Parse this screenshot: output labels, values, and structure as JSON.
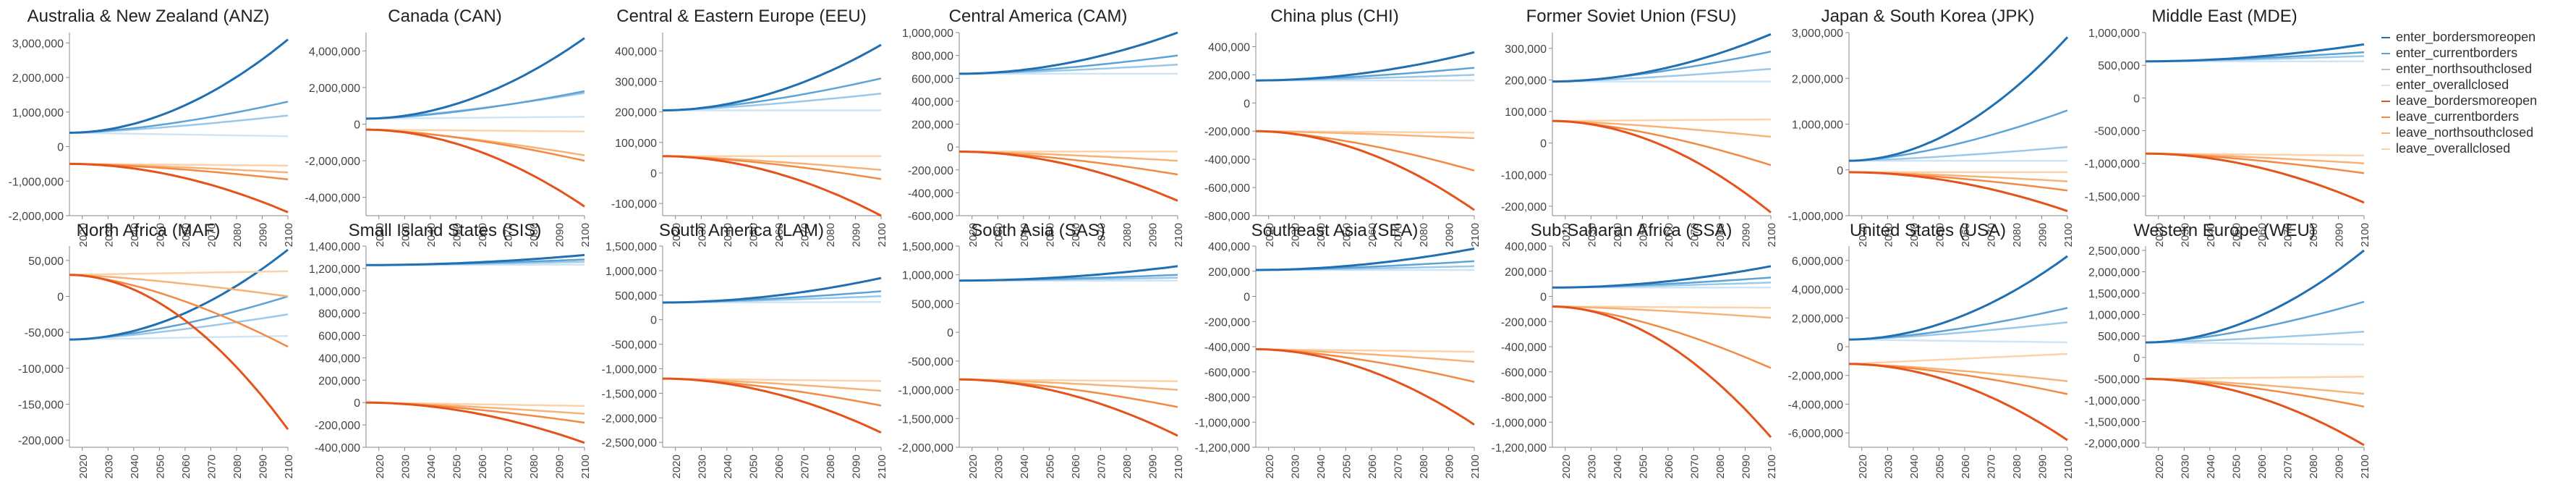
{
  "chart_data": {
    "type": "line",
    "layout": "small-multiples",
    "x_ticks": [
      "2020",
      "2030",
      "2040",
      "2050",
      "2060",
      "2070",
      "2080",
      "2090",
      "2100"
    ],
    "x_range": [
      2015,
      2100
    ],
    "series_names": [
      "enter_bordersmoreopen",
      "enter_currentborders",
      "enter_northsouthclosed",
      "enter_overallclosed",
      "leave_bordersmoreopen",
      "leave_currentborders",
      "leave_northsouthclosed",
      "leave_overallclosed"
    ],
    "colors": {
      "enter_bordersmoreopen": "#1f6fb2",
      "enter_currentborders": "#5ea3d6",
      "enter_northsouthclosed": "#9cc9ea",
      "enter_overallclosed": "#cfe4f4",
      "leave_bordersmoreopen": "#e5531a",
      "leave_currentborders": "#f28a44",
      "leave_northsouthclosed": "#f7b278",
      "leave_overallclosed": "#fbd3aa"
    },
    "grid": false,
    "legend_position": "right",
    "panels": [
      {
        "title": "Australia & New Zealand (ANZ)",
        "yticks": [
          "3,000,000",
          "2,000,000",
          "1,000,000",
          "0",
          "-1,000,000",
          "-2,000,000"
        ],
        "ylim": [
          -2000000,
          3300000
        ],
        "enter": {
          "start": 400000,
          "ends": [
            3100000,
            1300000,
            900000,
            300000
          ]
        },
        "leave": {
          "start": -500000,
          "ends": [
            -1900000,
            -950000,
            -750000,
            -550000
          ]
        }
      },
      {
        "title": "Canada (CAN)",
        "yticks": [
          "4,000,000",
          "2,000,000",
          "0",
          "-2,000,000",
          "-4,000,000"
        ],
        "ylim": [
          -5000000,
          5000000
        ],
        "enter": {
          "start": 300000,
          "ends": [
            4700000,
            1800000,
            1700000,
            400000
          ]
        },
        "leave": {
          "start": -300000,
          "ends": [
            -4500000,
            -2000000,
            -1700000,
            -400000
          ]
        }
      },
      {
        "title": "Central & Eastern Europe (EEU)",
        "yticks": [
          "400,000",
          "300,000",
          "200,000",
          "100,000",
          "0",
          "-100,000"
        ],
        "ylim": [
          -140000,
          460000
        ],
        "enter": {
          "start": 205000,
          "ends": [
            420000,
            310000,
            260000,
            205000
          ]
        },
        "leave": {
          "start": 55000,
          "ends": [
            -140000,
            -20000,
            10000,
            55000
          ]
        }
      },
      {
        "title": "Central America (CAM)",
        "yticks": [
          "1,000,000",
          "800,000",
          "600,000",
          "400,000",
          "200,000",
          "0",
          "-200,000",
          "-400,000",
          "-600,000"
        ],
        "ylim": [
          -600000,
          1000000
        ],
        "enter": {
          "start": 640000,
          "ends": [
            1000000,
            800000,
            720000,
            640000
          ]
        },
        "leave": {
          "start": -40000,
          "ends": [
            -470000,
            -240000,
            -120000,
            -40000
          ]
        }
      },
      {
        "title": "China plus (CHI)",
        "yticks": [
          "400,000",
          "200,000",
          "0",
          "-200,000",
          "-400,000",
          "-600,000",
          "-800,000"
        ],
        "ylim": [
          -800000,
          500000
        ],
        "enter": {
          "start": 160000,
          "ends": [
            360000,
            250000,
            200000,
            160000
          ]
        },
        "leave": {
          "start": -200000,
          "ends": [
            -760000,
            -480000,
            -250000,
            -210000
          ]
        }
      },
      {
        "title": "Former Soviet Union (FSU)",
        "yticks": [
          "300,000",
          "200,000",
          "100,000",
          "0",
          "-100,000",
          "-200,000"
        ],
        "ylim": [
          -230000,
          350000
        ],
        "enter": {
          "start": 195000,
          "ends": [
            345000,
            290000,
            235000,
            195000
          ]
        },
        "leave": {
          "start": 70000,
          "ends": [
            -220000,
            -70000,
            20000,
            75000
          ]
        }
      },
      {
        "title": "Japan & South Korea (JPK)",
        "yticks": [
          "3,000,000",
          "2,000,000",
          "1,000,000",
          "0",
          "-1,000,000"
        ],
        "ylim": [
          -1000000,
          3000000
        ],
        "enter": {
          "start": 200000,
          "ends": [
            2900000,
            1300000,
            500000,
            200000
          ]
        },
        "leave": {
          "start": -50000,
          "ends": [
            -900000,
            -450000,
            -250000,
            -50000
          ]
        }
      },
      {
        "title": "Middle East (MDE)",
        "yticks": [
          "1,000,000",
          "500,000",
          "0",
          "-500,000",
          "-1,000,000",
          "-1,500,000"
        ],
        "ylim": [
          -1800000,
          1000000
        ],
        "enter": {
          "start": 560000,
          "ends": [
            820000,
            700000,
            640000,
            560000
          ]
        },
        "leave": {
          "start": -850000,
          "ends": [
            -1600000,
            -1150000,
            -1000000,
            -880000
          ]
        }
      },
      {
        "title": "North Africa (MAF)",
        "yticks": [
          "50,000",
          "0",
          "-50,000",
          "-100,000",
          "-150,000",
          "-200,000"
        ],
        "ylim": [
          -210000,
          70000
        ],
        "enter": {
          "start": -60000,
          "ends": [
            65000,
            0,
            -25000,
            -55000
          ]
        },
        "leave": {
          "start": 30000,
          "ends": [
            -185000,
            -70000,
            0,
            35000
          ]
        }
      },
      {
        "title": "Small Island States (SIS)",
        "yticks": [
          "1,400,000",
          "1,200,000",
          "1,000,000",
          "800,000",
          "600,000",
          "400,000",
          "200,000",
          "0",
          "-200,000",
          "-400,000"
        ],
        "ylim": [
          -400000,
          1400000
        ],
        "enter": {
          "start": 1230000,
          "ends": [
            1320000,
            1280000,
            1260000,
            1235000
          ]
        },
        "leave": {
          "start": 0,
          "ends": [
            -360000,
            -180000,
            -100000,
            -30000
          ]
        }
      },
      {
        "title": "South America (LAM)",
        "yticks": [
          "1,500,000",
          "1,000,000",
          "500,000",
          "0",
          "-500,000",
          "-1,000,000",
          "-1,500,000",
          "-2,000,000",
          "-2,500,000"
        ],
        "ylim": [
          -2600000,
          1500000
        ],
        "enter": {
          "start": 350000,
          "ends": [
            850000,
            580000,
            480000,
            360000
          ]
        },
        "leave": {
          "start": -1200000,
          "ends": [
            -2300000,
            -1750000,
            -1450000,
            -1250000
          ]
        }
      },
      {
        "title": "South Asia (SAS)",
        "yticks": [
          "1,500,000",
          "1,000,000",
          "500,000",
          "0",
          "-500,000",
          "-1,000,000",
          "-1,500,000",
          "-2,000,000"
        ],
        "ylim": [
          -2000000,
          1500000
        ],
        "enter": {
          "start": 900000,
          "ends": [
            1150000,
            1000000,
            950000,
            900000
          ]
        },
        "leave": {
          "start": -820000,
          "ends": [
            -1800000,
            -1300000,
            -1000000,
            -850000
          ]
        }
      },
      {
        "title": "Southeast Asia (SEA)",
        "yticks": [
          "400,000",
          "200,000",
          "0",
          "-200,000",
          "-400,000",
          "-600,000",
          "-800,000",
          "-1,000,000",
          "-1,200,000"
        ],
        "ylim": [
          -1200000,
          400000
        ],
        "enter": {
          "start": 210000,
          "ends": [
            380000,
            280000,
            240000,
            210000
          ]
        },
        "leave": {
          "start": -420000,
          "ends": [
            -1020000,
            -680000,
            -520000,
            -440000
          ]
        }
      },
      {
        "title": "Sub-Saharan Africa (SSA)",
        "yticks": [
          "400,000",
          "200,000",
          "0",
          "-200,000",
          "-400,000",
          "-600,000",
          "-800,000",
          "-1,000,000",
          "-1,200,000"
        ],
        "ylim": [
          -1200000,
          400000
        ],
        "enter": {
          "start": 70000,
          "ends": [
            240000,
            150000,
            110000,
            70000
          ]
        },
        "leave": {
          "start": -80000,
          "ends": [
            -1120000,
            -570000,
            -170000,
            -90000
          ]
        }
      },
      {
        "title": "United States (USA)",
        "yticks": [
          "6,000,000",
          "4,000,000",
          "2,000,000",
          "0",
          "-2,000,000",
          "-4,000,000",
          "-6,000,000"
        ],
        "ylim": [
          -7000000,
          7000000
        ],
        "enter": {
          "start": 500000,
          "ends": [
            6300000,
            2700000,
            1700000,
            300000
          ]
        },
        "leave": {
          "start": -1200000,
          "ends": [
            -6500000,
            -3300000,
            -2400000,
            -500000
          ]
        }
      },
      {
        "title": "Western Europe (WEU)",
        "yticks": [
          "2,500,000",
          "2,000,000",
          "1,500,000",
          "1,000,000",
          "500,000",
          "0",
          "-500,000",
          "-1,000,000",
          "-1,500,000",
          "-2,000,000"
        ],
        "ylim": [
          -2100000,
          2600000
        ],
        "enter": {
          "start": 350000,
          "ends": [
            2500000,
            1300000,
            600000,
            300000
          ]
        },
        "leave": {
          "start": -500000,
          "ends": [
            -2050000,
            -1150000,
            -850000,
            -450000
          ]
        }
      }
    ]
  },
  "legend": {
    "items": [
      {
        "label": "enter_bordersmoreopen",
        "color": "#1f6fb2"
      },
      {
        "label": "enter_currentborders",
        "color": "#5ea3d6"
      },
      {
        "label": "enter_northsouthclosed",
        "color": "#9cc9ea"
      },
      {
        "label": "enter_overallclosed",
        "color": "#cfe4f4"
      },
      {
        "label": "leave_bordersmoreopen",
        "color": "#e5531a"
      },
      {
        "label": "leave_currentborders",
        "color": "#f28a44"
      },
      {
        "label": "leave_northsouthclosed",
        "color": "#f7b278"
      },
      {
        "label": "leave_overallclosed",
        "color": "#fbd3aa"
      }
    ]
  }
}
